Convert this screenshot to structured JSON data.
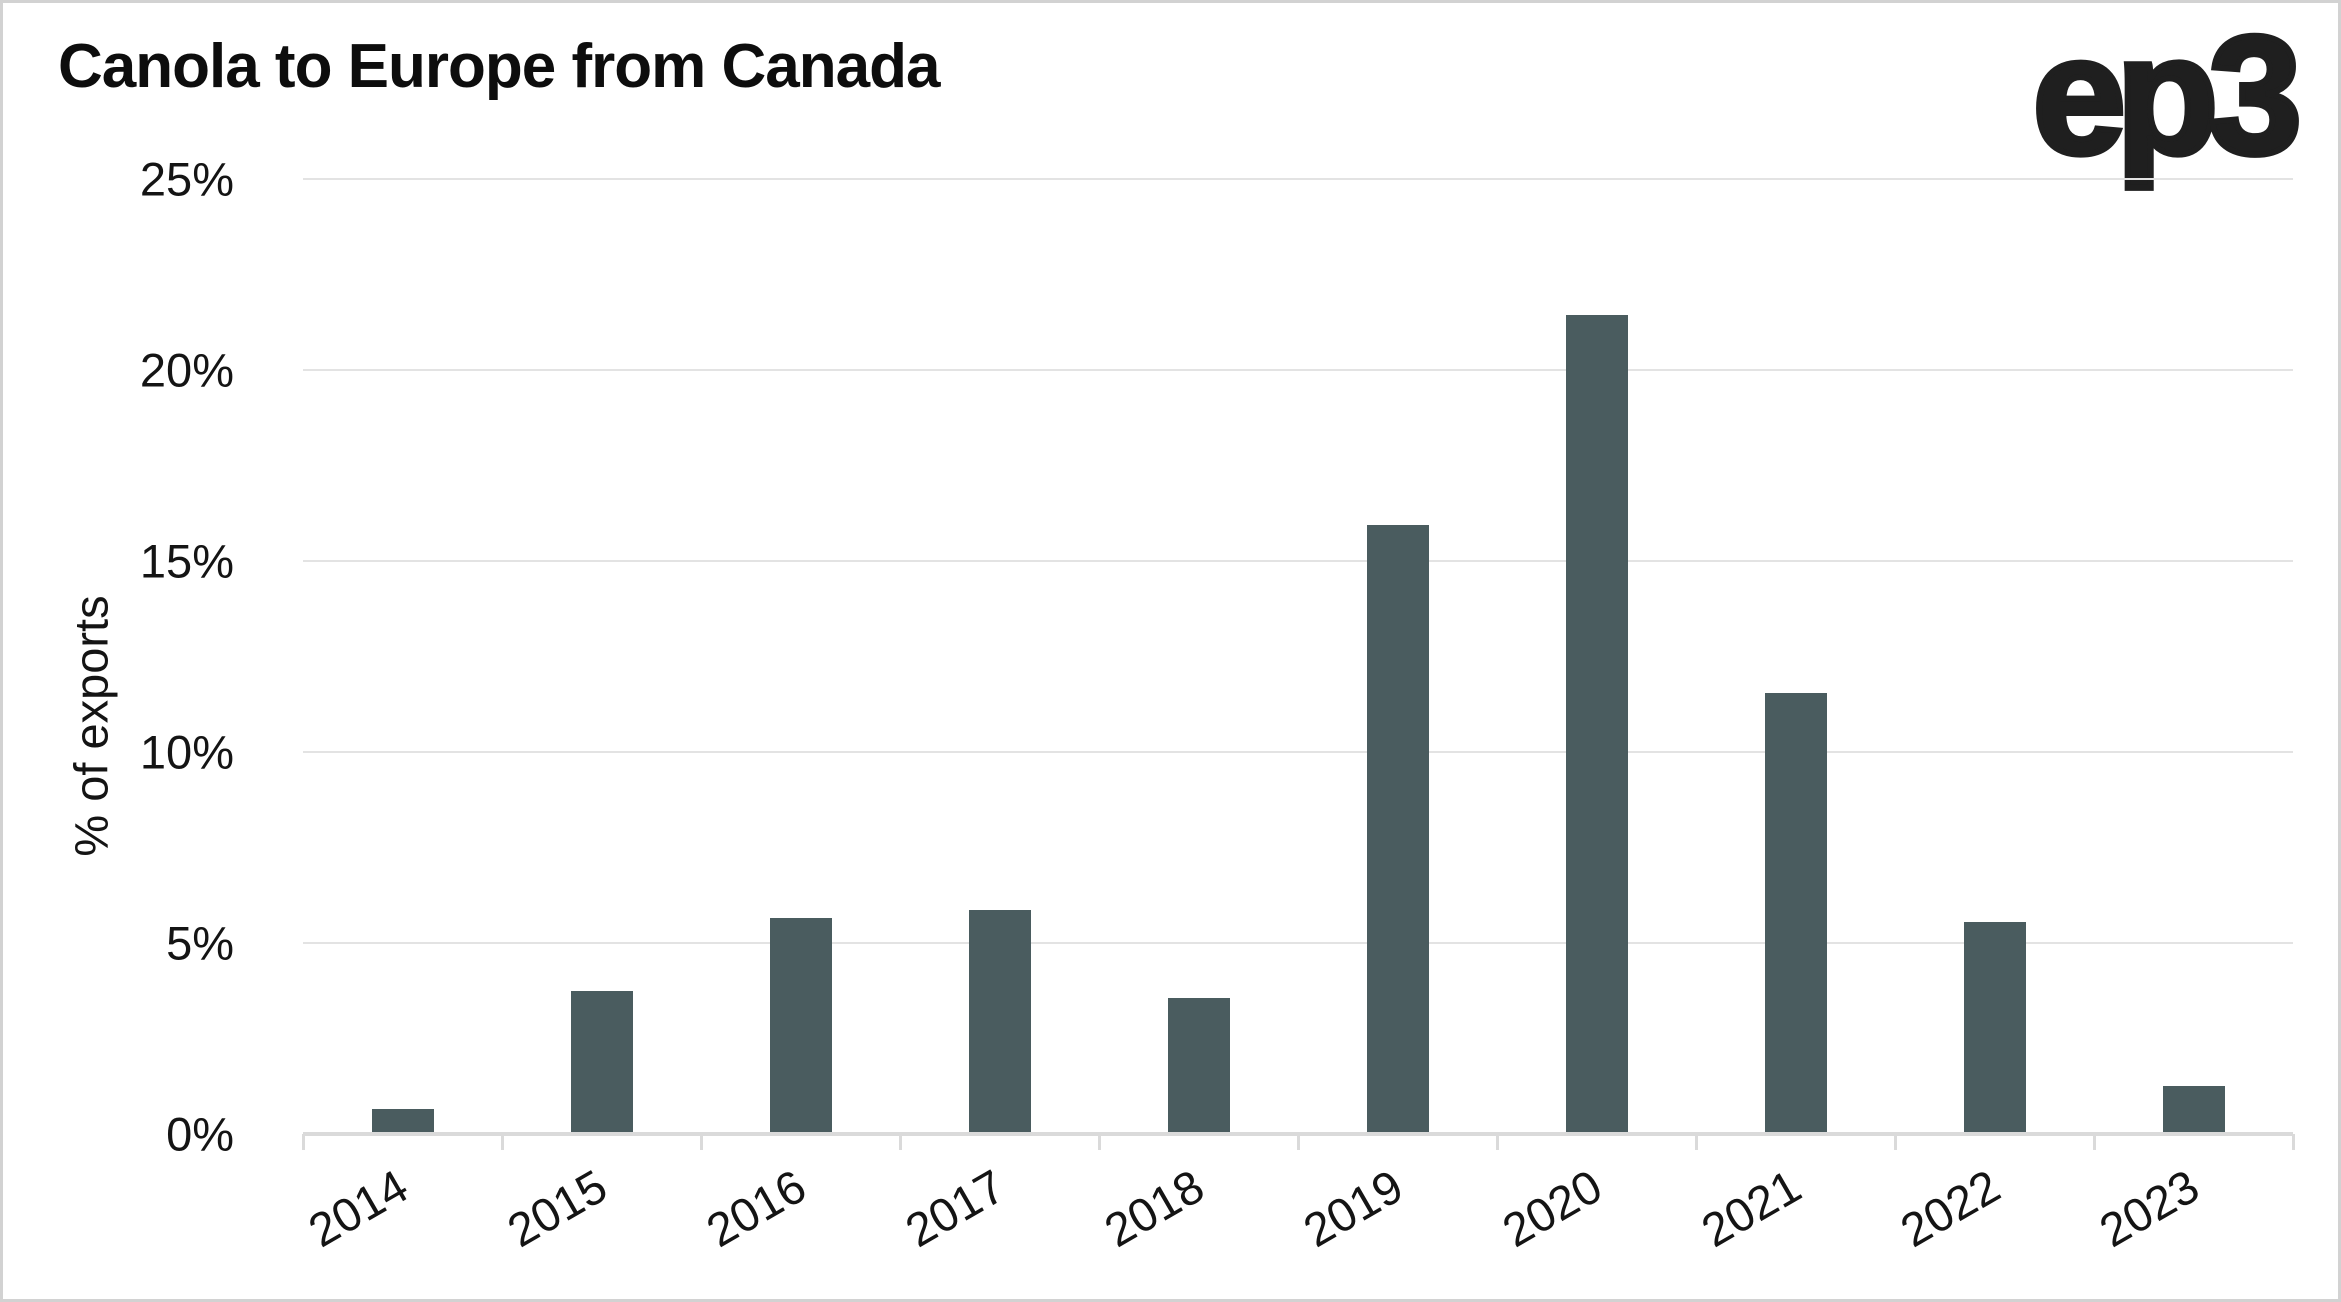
{
  "branding": {
    "logo_text": "ep3",
    "logo_color": "#1f1f1f"
  },
  "chart_data": {
    "type": "bar",
    "title": "Canola to Europe from Canada",
    "ylabel": "% of exports",
    "xlabel": "",
    "categories": [
      "2014",
      "2015",
      "2016",
      "2017",
      "2018",
      "2019",
      "2020",
      "2021",
      "2022",
      "2023"
    ],
    "values": [
      0.6,
      3.7,
      5.6,
      5.8,
      3.5,
      15.9,
      21.4,
      11.5,
      5.5,
      1.2
    ],
    "yticks": [
      0,
      5,
      10,
      15,
      20,
      25
    ],
    "ytick_labels": [
      "0%",
      "5%",
      "10%",
      "15%",
      "20%",
      "25%"
    ],
    "ylim": [
      0,
      25
    ],
    "grid": "horizontal-only",
    "legend": "none",
    "colors": {
      "bar": "#4a5c5f",
      "gridline": "#e3e3e3",
      "axis": "#dadada",
      "text": "#141414",
      "title": "#0d0d0d",
      "background": "#ffffff",
      "border": "#d2d2d2"
    }
  }
}
